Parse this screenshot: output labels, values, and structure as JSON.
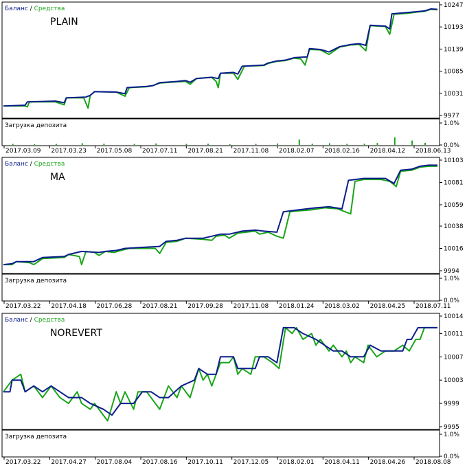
{
  "legend": {
    "balance": "Баланс",
    "sep": " / ",
    "equity": "Средства"
  },
  "load_label": "Загрузка депозита",
  "colors": {
    "balance": "#0b1d8c",
    "equity": "#19a519",
    "load_bar": "#19a519",
    "frame": "#000000",
    "tick_text": "#000000"
  },
  "chart_data": [
    {
      "type": "line",
      "title": "PLAIN",
      "ylim": [
        9977,
        10247
      ],
      "y_ticks": [
        10247,
        10193,
        10139,
        10085,
        10031,
        9977
      ],
      "x_ticks": [
        "2017.03.09",
        "2017.03.23",
        "2017.05.08",
        "2017.07.11",
        "2017.08.21",
        "2017.11.08",
        "2018.02.07",
        "2018.02.16",
        "2018.04.12",
        "2018.06.13"
      ],
      "balance": [
        [
          0,
          10000
        ],
        [
          0.05,
          10002
        ],
        [
          0.055,
          10010
        ],
        [
          0.12,
          10012
        ],
        [
          0.14,
          10008
        ],
        [
          0.145,
          10020
        ],
        [
          0.19,
          10022
        ],
        [
          0.2,
          10026
        ],
        [
          0.21,
          10035
        ],
        [
          0.26,
          10034
        ],
        [
          0.28,
          10030
        ],
        [
          0.285,
          10045
        ],
        [
          0.33,
          10048
        ],
        [
          0.345,
          10050
        ],
        [
          0.36,
          10057
        ],
        [
          0.4,
          10060
        ],
        [
          0.42,
          10062
        ],
        [
          0.43,
          10058
        ],
        [
          0.445,
          10067
        ],
        [
          0.48,
          10070
        ],
        [
          0.495,
          10067
        ],
        [
          0.5,
          10080
        ],
        [
          0.53,
          10082
        ],
        [
          0.54,
          10078
        ],
        [
          0.55,
          10097
        ],
        [
          0.6,
          10100
        ],
        [
          0.61,
          10105
        ],
        [
          0.63,
          10110
        ],
        [
          0.65,
          10112
        ],
        [
          0.67,
          10118
        ],
        [
          0.7,
          10120
        ],
        [
          0.705,
          10140
        ],
        [
          0.73,
          10138
        ],
        [
          0.75,
          10132
        ],
        [
          0.775,
          10145
        ],
        [
          0.8,
          10150
        ],
        [
          0.82,
          10152
        ],
        [
          0.835,
          10148
        ],
        [
          0.845,
          10197
        ],
        [
          0.88,
          10195
        ],
        [
          0.89,
          10188
        ],
        [
          0.895,
          10225
        ],
        [
          0.93,
          10228
        ],
        [
          0.95,
          10230
        ],
        [
          0.97,
          10232
        ],
        [
          0.985,
          10237
        ],
        [
          1.0,
          10236
        ]
      ],
      "equity": [
        [
          0,
          10000
        ],
        [
          0.05,
          10000
        ],
        [
          0.055,
          9998
        ],
        [
          0.06,
          10010
        ],
        [
          0.12,
          10010
        ],
        [
          0.14,
          10003
        ],
        [
          0.145,
          10020
        ],
        [
          0.185,
          10020
        ],
        [
          0.195,
          9995
        ],
        [
          0.2,
          10026
        ],
        [
          0.21,
          10035
        ],
        [
          0.26,
          10034
        ],
        [
          0.28,
          10024
        ],
        [
          0.29,
          10045
        ],
        [
          0.33,
          10047
        ],
        [
          0.345,
          10050
        ],
        [
          0.36,
          10056
        ],
        [
          0.4,
          10059
        ],
        [
          0.42,
          10060
        ],
        [
          0.43,
          10053
        ],
        [
          0.445,
          10067
        ],
        [
          0.48,
          10070
        ],
        [
          0.49,
          10060
        ],
        [
          0.495,
          10045
        ],
        [
          0.5,
          10080
        ],
        [
          0.53,
          10080
        ],
        [
          0.54,
          10065
        ],
        [
          0.555,
          10097
        ],
        [
          0.6,
          10099
        ],
        [
          0.61,
          10104
        ],
        [
          0.63,
          10109
        ],
        [
          0.65,
          10111
        ],
        [
          0.67,
          10117
        ],
        [
          0.685,
          10115
        ],
        [
          0.695,
          10100
        ],
        [
          0.705,
          10138
        ],
        [
          0.73,
          10137
        ],
        [
          0.75,
          10126
        ],
        [
          0.775,
          10144
        ],
        [
          0.8,
          10149
        ],
        [
          0.82,
          10150
        ],
        [
          0.835,
          10135
        ],
        [
          0.845,
          10196
        ],
        [
          0.88,
          10194
        ],
        [
          0.89,
          10175
        ],
        [
          0.9,
          10224
        ],
        [
          0.93,
          10226
        ],
        [
          0.95,
          10229
        ],
        [
          0.97,
          10231
        ],
        [
          0.985,
          10236
        ],
        [
          1.0,
          10235
        ]
      ],
      "load": {
        "ylim": [
          0,
          1.0
        ],
        "y_ticks": [
          "1.0%",
          "0.0%"
        ],
        "bars": [
          [
            0.02,
            0.05
          ],
          [
            0.07,
            0.04
          ],
          [
            0.12,
            0.05
          ],
          [
            0.18,
            0.08
          ],
          [
            0.23,
            0.06
          ],
          [
            0.3,
            0.05
          ],
          [
            0.35,
            0.07
          ],
          [
            0.42,
            0.05
          ],
          [
            0.47,
            0.06
          ],
          [
            0.52,
            0.04
          ],
          [
            0.58,
            0.05
          ],
          [
            0.63,
            0.07
          ],
          [
            0.68,
            0.25
          ],
          [
            0.71,
            0.06
          ],
          [
            0.75,
            0.08
          ],
          [
            0.79,
            0.05
          ],
          [
            0.83,
            0.06
          ],
          [
            0.86,
            0.09
          ],
          [
            0.9,
            0.35
          ],
          [
            0.94,
            0.2
          ],
          [
            0.97,
            0.1
          ]
        ]
      }
    },
    {
      "type": "line",
      "title": "MA",
      "ylim": [
        9994,
        10103
      ],
      "y_ticks": [
        10103,
        10081,
        10059,
        10038,
        10016,
        9994
      ],
      "x_ticks": [
        "2017.03.22",
        "2017.04.18",
        "2017.06.28",
        "2017.08.21",
        "2017.09.28",
        "2017.11.08",
        "2018.01.24",
        "2018.03.02",
        "2018.04.25",
        "2018.07.11"
      ],
      "balance": [
        [
          0,
          10000
        ],
        [
          0.02,
          10001
        ],
        [
          0.03,
          10003
        ],
        [
          0.07,
          10003
        ],
        [
          0.09,
          10007
        ],
        [
          0.14,
          10008
        ],
        [
          0.15,
          10010
        ],
        [
          0.18,
          10013
        ],
        [
          0.22,
          10012
        ],
        [
          0.235,
          10013
        ],
        [
          0.26,
          10014
        ],
        [
          0.28,
          10016
        ],
        [
          0.32,
          10017
        ],
        [
          0.36,
          10018
        ],
        [
          0.375,
          10023
        ],
        [
          0.4,
          10024
        ],
        [
          0.42,
          10026
        ],
        [
          0.46,
          10026
        ],
        [
          0.48,
          10028
        ],
        [
          0.5,
          10030
        ],
        [
          0.52,
          10030
        ],
        [
          0.55,
          10033
        ],
        [
          0.58,
          10034
        ],
        [
          0.6,
          10033
        ],
        [
          0.63,
          10032
        ],
        [
          0.645,
          10052
        ],
        [
          0.68,
          10054
        ],
        [
          0.72,
          10056
        ],
        [
          0.75,
          10057
        ],
        [
          0.78,
          10055
        ],
        [
          0.795,
          10083
        ],
        [
          0.83,
          10085
        ],
        [
          0.88,
          10085
        ],
        [
          0.9,
          10080
        ],
        [
          0.915,
          10093
        ],
        [
          0.94,
          10094
        ],
        [
          0.96,
          10097
        ],
        [
          0.98,
          10098
        ],
        [
          1.0,
          10098
        ]
      ],
      "equity": [
        [
          0,
          10000
        ],
        [
          0.02,
          10000
        ],
        [
          0.03,
          10003
        ],
        [
          0.06,
          10002
        ],
        [
          0.07,
          10000
        ],
        [
          0.09,
          10006
        ],
        [
          0.14,
          10007
        ],
        [
          0.15,
          10010
        ],
        [
          0.175,
          10008
        ],
        [
          0.18,
          10000
        ],
        [
          0.19,
          10013
        ],
        [
          0.21,
          10012
        ],
        [
          0.22,
          10009
        ],
        [
          0.235,
          10013
        ],
        [
          0.255,
          10012
        ],
        [
          0.27,
          10014
        ],
        [
          0.29,
          10016
        ],
        [
          0.32,
          10016
        ],
        [
          0.35,
          10016
        ],
        [
          0.36,
          10011
        ],
        [
          0.375,
          10022
        ],
        [
          0.4,
          10023
        ],
        [
          0.42,
          10026
        ],
        [
          0.46,
          10025
        ],
        [
          0.48,
          10024
        ],
        [
          0.49,
          10028
        ],
        [
          0.51,
          10029
        ],
        [
          0.52,
          10026
        ],
        [
          0.54,
          10031
        ],
        [
          0.58,
          10033
        ],
        [
          0.59,
          10030
        ],
        [
          0.61,
          10032
        ],
        [
          0.63,
          10028
        ],
        [
          0.645,
          10026
        ],
        [
          0.66,
          10052
        ],
        [
          0.68,
          10053
        ],
        [
          0.71,
          10054
        ],
        [
          0.74,
          10056
        ],
        [
          0.77,
          10055
        ],
        [
          0.8,
          10050
        ],
        [
          0.81,
          10082
        ],
        [
          0.83,
          10084
        ],
        [
          0.87,
          10084
        ],
        [
          0.89,
          10082
        ],
        [
          0.905,
          10077
        ],
        [
          0.915,
          10092
        ],
        [
          0.94,
          10093
        ],
        [
          0.96,
          10096
        ],
        [
          0.98,
          10097
        ],
        [
          1.0,
          10097
        ]
      ],
      "load": {
        "ylim": [
          0,
          1.0
        ],
        "y_ticks": [
          "1.0%",
          "0.0%"
        ],
        "bars": []
      }
    },
    {
      "type": "line",
      "title": "NOREVERT",
      "ylim": [
        9995,
        10014
      ],
      "y_ticks": [
        10014,
        10011,
        10007,
        10003,
        9999,
        9995
      ],
      "x_ticks": [
        "2017.03.22",
        "2017.04.27",
        "2017.08.04",
        "2017.08.16",
        "2017.10.11",
        "2017.12.05",
        "2018.02.01",
        "2018.04.11",
        "2018.04.26",
        "2018.08.08"
      ],
      "balance": [
        [
          0,
          10001
        ],
        [
          0.015,
          10001
        ],
        [
          0.02,
          10003
        ],
        [
          0.04,
          10003
        ],
        [
          0.05,
          10001
        ],
        [
          0.07,
          10002
        ],
        [
          0.09,
          10001
        ],
        [
          0.11,
          10002
        ],
        [
          0.13,
          10001
        ],
        [
          0.15,
          10000
        ],
        [
          0.18,
          10000
        ],
        [
          0.2,
          9999
        ],
        [
          0.23,
          9998
        ],
        [
          0.25,
          9997
        ],
        [
          0.27,
          9999
        ],
        [
          0.3,
          9999
        ],
        [
          0.32,
          10001
        ],
        [
          0.34,
          10001
        ],
        [
          0.36,
          10000
        ],
        [
          0.38,
          10000
        ],
        [
          0.41,
          10002
        ],
        [
          0.44,
          10003
        ],
        [
          0.45,
          10005
        ],
        [
          0.47,
          10004
        ],
        [
          0.49,
          10004
        ],
        [
          0.5,
          10007
        ],
        [
          0.53,
          10007
        ],
        [
          0.54,
          10005
        ],
        [
          0.58,
          10005
        ],
        [
          0.59,
          10007
        ],
        [
          0.61,
          10007
        ],
        [
          0.63,
          10006
        ],
        [
          0.645,
          10012
        ],
        [
          0.67,
          10012
        ],
        [
          0.69,
          10011
        ],
        [
          0.72,
          10010
        ],
        [
          0.74,
          10009
        ],
        [
          0.76,
          10008
        ],
        [
          0.78,
          10008
        ],
        [
          0.8,
          10007
        ],
        [
          0.83,
          10007
        ],
        [
          0.845,
          10009
        ],
        [
          0.87,
          10008
        ],
        [
          0.89,
          10008
        ],
        [
          0.92,
          10008
        ],
        [
          0.93,
          10010
        ],
        [
          0.94,
          10010
        ],
        [
          0.955,
          10012
        ],
        [
          0.98,
          10012
        ],
        [
          1.0,
          10012
        ]
      ],
      "equity": [
        [
          0,
          10001
        ],
        [
          0.02,
          10003
        ],
        [
          0.04,
          10004
        ],
        [
          0.05,
          10001
        ],
        [
          0.07,
          10002
        ],
        [
          0.09,
          10000
        ],
        [
          0.11,
          10002
        ],
        [
          0.13,
          10000
        ],
        [
          0.15,
          9999
        ],
        [
          0.17,
          10001
        ],
        [
          0.18,
          9999
        ],
        [
          0.2,
          9998
        ],
        [
          0.21,
          9999
        ],
        [
          0.23,
          9997
        ],
        [
          0.24,
          9996
        ],
        [
          0.26,
          10001
        ],
        [
          0.27,
          9999
        ],
        [
          0.28,
          10001
        ],
        [
          0.3,
          9998
        ],
        [
          0.31,
          10001
        ],
        [
          0.33,
          10001
        ],
        [
          0.35,
          9999
        ],
        [
          0.36,
          9998
        ],
        [
          0.38,
          10002
        ],
        [
          0.4,
          10000
        ],
        [
          0.41,
          10002
        ],
        [
          0.43,
          10000
        ],
        [
          0.45,
          10005
        ],
        [
          0.46,
          10003
        ],
        [
          0.47,
          10004
        ],
        [
          0.48,
          10002
        ],
        [
          0.49,
          10004
        ],
        [
          0.5,
          10006
        ],
        [
          0.52,
          10006
        ],
        [
          0.53,
          10007
        ],
        [
          0.54,
          10004
        ],
        [
          0.55,
          10005
        ],
        [
          0.57,
          10004
        ],
        [
          0.58,
          10007
        ],
        [
          0.6,
          10007
        ],
        [
          0.62,
          10006
        ],
        [
          0.635,
          10005
        ],
        [
          0.65,
          10012
        ],
        [
          0.665,
          10011
        ],
        [
          0.675,
          10012
        ],
        [
          0.69,
          10010
        ],
        [
          0.71,
          10011
        ],
        [
          0.72,
          10009
        ],
        [
          0.73,
          10010
        ],
        [
          0.75,
          10008
        ],
        [
          0.76,
          10009
        ],
        [
          0.78,
          10007
        ],
        [
          0.79,
          10008
        ],
        [
          0.8,
          10006
        ],
        [
          0.81,
          10007
        ],
        [
          0.83,
          10006
        ],
        [
          0.84,
          10009
        ],
        [
          0.86,
          10007
        ],
        [
          0.88,
          10008
        ],
        [
          0.9,
          10008
        ],
        [
          0.92,
          10009
        ],
        [
          0.935,
          10008
        ],
        [
          0.95,
          10010
        ],
        [
          0.96,
          10010
        ],
        [
          0.97,
          10012
        ],
        [
          0.99,
          10012
        ],
        [
          1.0,
          10012
        ]
      ],
      "load": {
        "ylim": [
          0,
          1.0
        ],
        "y_ticks": [
          "1.0%",
          "0.0%"
        ],
        "bars": []
      }
    }
  ]
}
